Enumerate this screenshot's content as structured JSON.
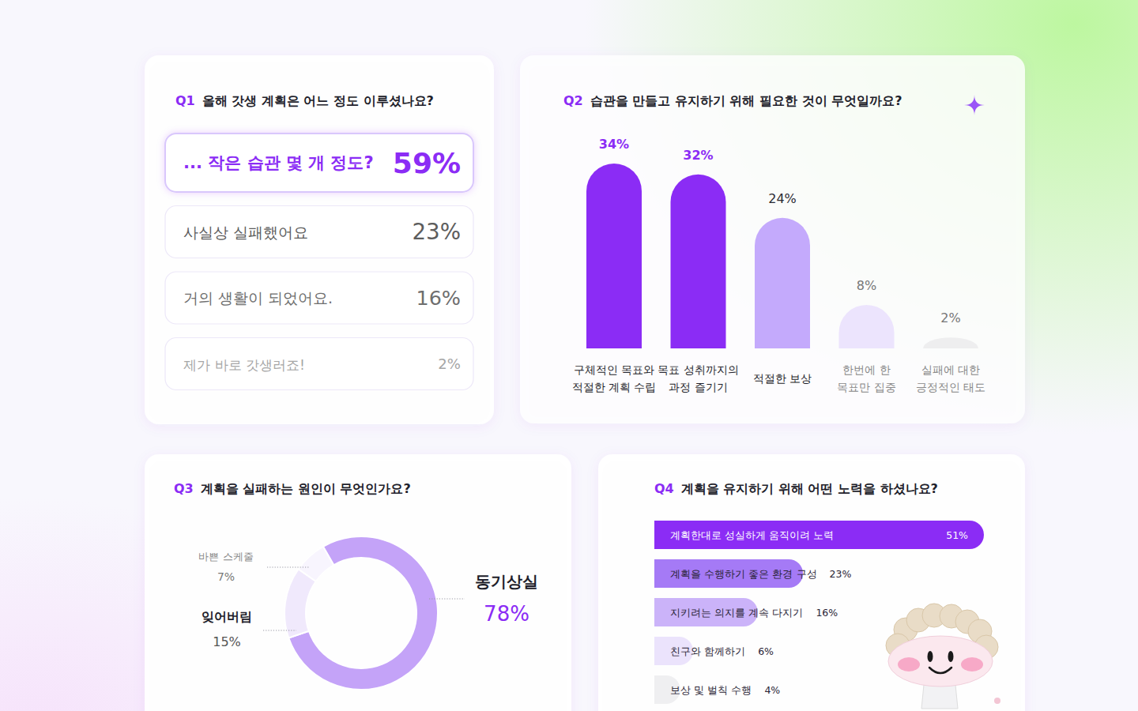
{
  "chart_data": [
    {
      "type": "list",
      "title": "Q1 올해 갓생 계획은 어느 정도 이루셨나요?",
      "categories": [
        "... 작은 습관 몇 개 정도?",
        "사실상 실패했어요",
        "거의 생활이 되었어요.",
        "제가 바로 갓생러죠!"
      ],
      "values": [
        59,
        23,
        16,
        2
      ],
      "value_labels": [
        "59%",
        "23%",
        "16%",
        "2%"
      ],
      "color": "#8b2cf5",
      "data_labels": true
    },
    {
      "type": "bar",
      "title": "Q2 습관을 만들고 유지하기 위해 필요한 것이 무엇일까요?",
      "categories": [
        "구체적인 목표와\n적절한 계획 수립",
        "목표 성취까지의\n과정 즐기기",
        "적절한 보상",
        "한번에 한\n목표만 집중",
        "실패에 대한\n긍정적인 태도"
      ],
      "values": [
        34,
        32,
        24,
        8,
        2
      ],
      "value_labels": [
        "34%",
        "32%",
        "24%",
        "8%",
        "2%"
      ],
      "colors": [
        "#8b2cf5",
        "#8b2cf5",
        "#c4aafc",
        "#ece4fd",
        "#eeeeef"
      ],
      "ylim": [
        0,
        34
      ],
      "data_labels": true,
      "tick_labels": "x"
    },
    {
      "type": "pie",
      "title": "Q3 계획을 실패하는 원인이 무엇인가요?",
      "categories": [
        "동기상실",
        "잊어버림",
        "바쁜 스케줄"
      ],
      "values": [
        78,
        15,
        7
      ],
      "value_labels": [
        "78%",
        "15%",
        "7%"
      ],
      "colors": [
        "#c4a3f8",
        "#f0e9fc",
        "#f8f5fe"
      ],
      "data_labels": true
    },
    {
      "type": "bar",
      "orientation": "horizontal",
      "title": "Q4 계획을 유지하기 위해 어떤 노력을 하셨나요?",
      "categories": [
        "계획한대로 성실하게 움직이려 노력",
        "계획을 수행하기 좋은 환경 구성",
        "지키려는 의지를 계속 다지기",
        "친구와 함께하기",
        "보상 및 벌칙 수행"
      ],
      "values": [
        51,
        23,
        16,
        6,
        4
      ],
      "value_labels": [
        "51%",
        "23%",
        "16%",
        "6%",
        "4%"
      ],
      "colors": [
        "#8b2cf5",
        "#a57af6",
        "#cbb3f9",
        "#ebe3fc",
        "#efeff1"
      ],
      "xlim": [
        0,
        51
      ],
      "data_labels": true,
      "tick_labels": "y"
    }
  ]
}
